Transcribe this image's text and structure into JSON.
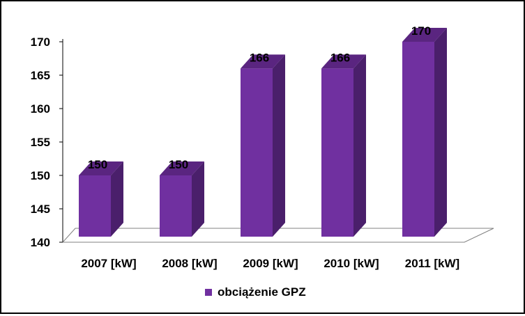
{
  "chart_data": {
    "type": "bar",
    "style": "3d-column",
    "categories": [
      "2007 [kW]",
      "2008 [kW]",
      "2009 [kW]",
      "2010 [kW]",
      "2011 [kW]"
    ],
    "series": [
      {
        "name": "obciążenie GPZ",
        "values": [
          150,
          150,
          166,
          166,
          170
        ]
      }
    ],
    "ylim": [
      140,
      170
    ],
    "yticks": [
      140,
      145,
      150,
      155,
      160,
      165,
      170
    ],
    "data_labels": [
      "150",
      "150",
      "166",
      "166",
      "170"
    ],
    "legend_position": "bottom",
    "grid": false,
    "colors": {
      "bar_front": "#7030A0",
      "bar_side": "#4A1F6B",
      "bar_top": "#5A2580"
    }
  }
}
